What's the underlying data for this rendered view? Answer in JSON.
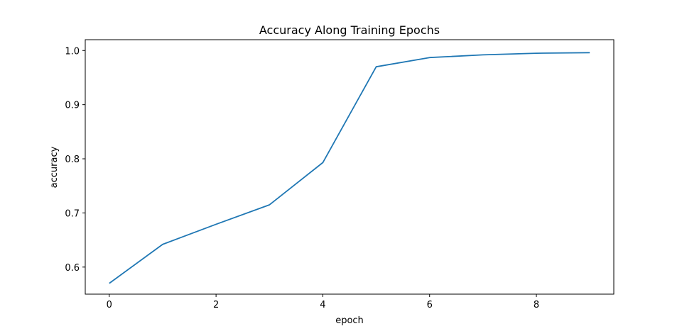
{
  "chart_data": {
    "type": "line",
    "title": "Accuracy Along Training Epochs",
    "xlabel": "epoch",
    "ylabel": "accuracy",
    "xlim": [
      -0.45,
      9.45
    ],
    "ylim": [
      0.55,
      1.02
    ],
    "xticks": [
      0,
      2,
      4,
      6,
      8
    ],
    "yticks": [
      0.6,
      0.7,
      0.8,
      0.9,
      1.0
    ],
    "xtick_labels": [
      "0",
      "2",
      "4",
      "6",
      "8"
    ],
    "ytick_labels": [
      "0.6",
      "0.7",
      "0.8",
      "0.9",
      "1.0"
    ],
    "grid": false,
    "series": [
      {
        "color": "#1f77b4",
        "x": [
          0,
          1,
          2,
          3,
          4,
          5,
          6,
          7,
          8,
          9
        ],
        "y": [
          0.57,
          0.642,
          0.679,
          0.715,
          0.793,
          0.97,
          0.987,
          0.992,
          0.995,
          0.996
        ]
      }
    ]
  }
}
